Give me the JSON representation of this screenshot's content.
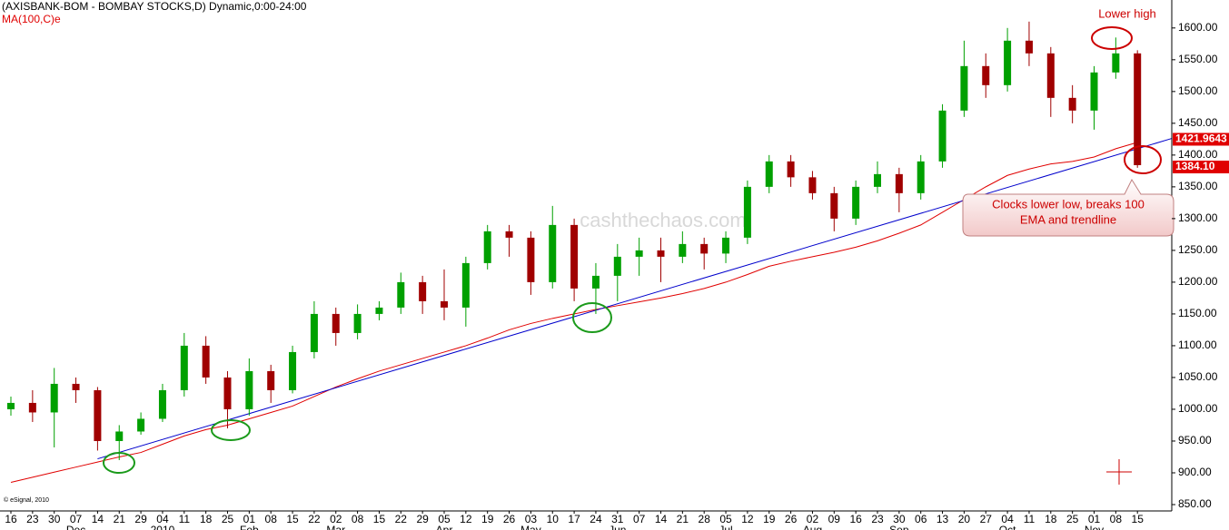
{
  "chart_data": {
    "type": "candlestick",
    "title": "(AXISBANK-BOM - BOMBAY STOCKS,D) Dynamic,0:00-24:00",
    "watermark": "cashthechaos.com",
    "credit": "© eSignal, 2010",
    "categories": [
      "16",
      "23",
      "30",
      "07",
      "14",
      "21",
      "29",
      "04",
      "11",
      "18",
      "25",
      "01",
      "08",
      "15",
      "22",
      "02",
      "08",
      "15",
      "22",
      "29",
      "05",
      "12",
      "19",
      "26",
      "03",
      "10",
      "17",
      "24",
      "31",
      "07",
      "14",
      "21",
      "28",
      "05",
      "12",
      "19",
      "26",
      "02",
      "09",
      "16",
      "23",
      "30",
      "06",
      "13",
      "20",
      "27",
      "04",
      "11",
      "18",
      "25",
      "01",
      "08",
      "15"
    ],
    "months": [
      null,
      null,
      null,
      "Dec",
      null,
      null,
      null,
      "2010",
      null,
      null,
      null,
      "Feb",
      null,
      null,
      null,
      "Mar",
      null,
      null,
      null,
      null,
      "Apr",
      null,
      null,
      null,
      "May",
      null,
      null,
      null,
      "Jun",
      null,
      null,
      null,
      null,
      "Jul",
      null,
      null,
      null,
      "Aug",
      null,
      null,
      null,
      "Sep",
      null,
      null,
      null,
      null,
      "Oct",
      null,
      null,
      null,
      "Nov",
      null,
      null
    ],
    "open": [
      1000,
      1010,
      995,
      1040,
      1030,
      950,
      965,
      985,
      1030,
      1100,
      1050,
      1000,
      1060,
      1030,
      1090,
      1150,
      1120,
      1150,
      1160,
      1200,
      1170,
      1160,
      1230,
      1280,
      1270,
      1200,
      1290,
      1190,
      1210,
      1240,
      1250,
      1240,
      1260,
      1245,
      1270,
      1350,
      1390,
      1365,
      1340,
      1300,
      1350,
      1370,
      1340,
      1390,
      1470,
      1540,
      1510,
      1580,
      1560,
      1490,
      1470,
      1530,
      1560
    ],
    "high": [
      1020,
      1030,
      1065,
      1050,
      1035,
      975,
      995,
      1040,
      1120,
      1115,
      1060,
      1080,
      1070,
      1100,
      1170,
      1160,
      1165,
      1170,
      1215,
      1210,
      1220,
      1240,
      1290,
      1290,
      1280,
      1320,
      1300,
      1230,
      1260,
      1270,
      1270,
      1280,
      1270,
      1280,
      1360,
      1400,
      1400,
      1375,
      1350,
      1360,
      1390,
      1380,
      1400,
      1480,
      1580,
      1560,
      1600,
      1610,
      1570,
      1510,
      1540,
      1585,
      1565
    ],
    "low": [
      990,
      980,
      940,
      1010,
      935,
      920,
      960,
      980,
      1020,
      1040,
      970,
      990,
      1010,
      1025,
      1080,
      1100,
      1110,
      1140,
      1150,
      1150,
      1140,
      1130,
      1220,
      1240,
      1180,
      1190,
      1170,
      1150,
      1170,
      1210,
      1200,
      1230,
      1220,
      1230,
      1260,
      1340,
      1350,
      1330,
      1280,
      1290,
      1340,
      1310,
      1330,
      1380,
      1460,
      1490,
      1500,
      1540,
      1460,
      1450,
      1440,
      1520,
      1380
    ],
    "close": [
      1010,
      995,
      1040,
      1030,
      950,
      965,
      985,
      1030,
      1100,
      1050,
      1000,
      1060,
      1030,
      1090,
      1150,
      1120,
      1150,
      1160,
      1200,
      1170,
      1160,
      1230,
      1280,
      1270,
      1200,
      1290,
      1190,
      1210,
      1240,
      1250,
      1240,
      1260,
      1245,
      1270,
      1350,
      1390,
      1365,
      1340,
      1300,
      1350,
      1370,
      1340,
      1390,
      1470,
      1540,
      1510,
      1580,
      1560,
      1490,
      1470,
      1530,
      1560,
      1384.1
    ],
    "up_color": "#00a000",
    "down_color": "#a00000",
    "ma": {
      "name": "MA(100,C)e",
      "color": "#e00000",
      "values": [
        885,
        893,
        901,
        909,
        917,
        925,
        932,
        945,
        958,
        968,
        975,
        985,
        995,
        1005,
        1020,
        1035,
        1048,
        1060,
        1070,
        1080,
        1090,
        1100,
        1112,
        1125,
        1135,
        1143,
        1150,
        1157,
        1163,
        1169,
        1175,
        1182,
        1190,
        1200,
        1212,
        1225,
        1233,
        1240,
        1247,
        1255,
        1265,
        1277,
        1290,
        1310,
        1330,
        1350,
        1368,
        1378,
        1386,
        1390,
        1397,
        1410,
        1420
      ]
    },
    "trendline": {
      "color": "#0000cc",
      "start_index": 4,
      "start": 922,
      "end_index": 52,
      "end": 1410
    },
    "ylim": [
      840,
      1644
    ],
    "yticks": [
      {
        "value": 850,
        "label": "850.00"
      },
      {
        "value": 900,
        "label": "900.00"
      },
      {
        "value": 950,
        "label": "950.00"
      },
      {
        "value": 1000,
        "label": "1000.00"
      },
      {
        "value": 1050,
        "label": "1050.00"
      },
      {
        "value": 1100,
        "label": "1100.00"
      },
      {
        "value": 1150,
        "label": "1150.00"
      },
      {
        "value": 1200,
        "label": "1200.00"
      },
      {
        "value": 1250,
        "label": "1250.00"
      },
      {
        "value": 1300,
        "label": "1300.00"
      },
      {
        "value": 1350,
        "label": "1350.00"
      },
      {
        "value": 1400,
        "label": "1400.00"
      },
      {
        "value": 1450,
        "label": "1450.00"
      },
      {
        "value": 1500,
        "label": "1500.00"
      },
      {
        "value": 1550,
        "label": "1550.00"
      },
      {
        "value": 1600,
        "label": "1600.00"
      }
    ],
    "price_labels": [
      1421.9643,
      {
        "value": 1384.1,
        "label": "1384.10"
      }
    ],
    "annotations": {
      "top": "Lower high",
      "callout": [
        "Clocks lower low, breaks 100",
        "EMA and trendline"
      ]
    }
  }
}
